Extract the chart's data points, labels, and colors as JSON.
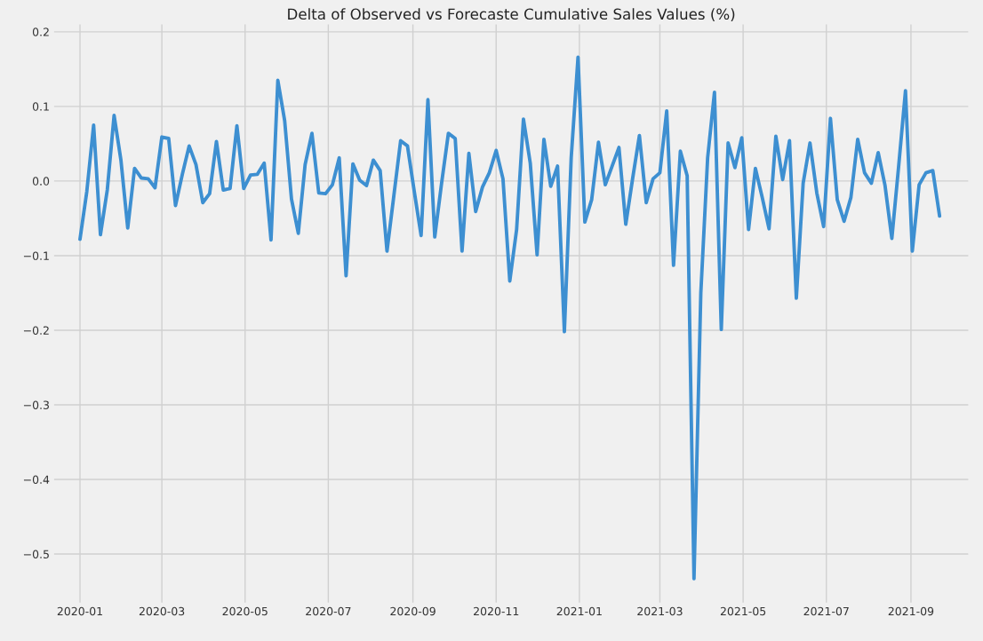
{
  "chart_data": {
    "type": "line",
    "title": "Delta of Observed vs Forecaste Cumulative Sales Values (%)",
    "x": [
      "2020-01-01",
      "2020-01-06",
      "2020-01-11",
      "2020-01-16",
      "2020-01-21",
      "2020-01-26",
      "2020-01-31",
      "2020-02-05",
      "2020-02-10",
      "2020-02-15",
      "2020-02-20",
      "2020-02-25",
      "2020-03-01",
      "2020-03-06",
      "2020-03-11",
      "2020-03-16",
      "2020-03-21",
      "2020-03-26",
      "2020-03-31",
      "2020-04-05",
      "2020-04-10",
      "2020-04-15",
      "2020-04-20",
      "2020-04-25",
      "2020-04-30",
      "2020-05-05",
      "2020-05-10",
      "2020-05-15",
      "2020-05-20",
      "2020-05-25",
      "2020-05-30",
      "2020-06-04",
      "2020-06-09",
      "2020-06-14",
      "2020-06-19",
      "2020-06-24",
      "2020-06-29",
      "2020-07-04",
      "2020-07-09",
      "2020-07-14",
      "2020-07-19",
      "2020-07-24",
      "2020-07-29",
      "2020-08-03",
      "2020-08-08",
      "2020-08-13",
      "2020-08-18",
      "2020-08-23",
      "2020-08-28",
      "2020-09-02",
      "2020-09-07",
      "2020-09-12",
      "2020-09-17",
      "2020-09-22",
      "2020-09-27",
      "2020-10-02",
      "2020-10-07",
      "2020-10-12",
      "2020-10-17",
      "2020-10-22",
      "2020-10-27",
      "2020-11-01",
      "2020-11-06",
      "2020-11-11",
      "2020-11-16",
      "2020-11-21",
      "2020-11-26",
      "2020-12-01",
      "2020-12-06",
      "2020-12-11",
      "2020-12-16",
      "2020-12-21",
      "2020-12-26",
      "2020-12-31",
      "2021-01-05",
      "2021-01-10",
      "2021-01-15",
      "2021-01-20",
      "2021-01-25",
      "2021-01-30",
      "2021-02-04",
      "2021-02-09",
      "2021-02-14",
      "2021-02-19",
      "2021-02-24",
      "2021-03-01",
      "2021-03-06",
      "2021-03-11",
      "2021-03-16",
      "2021-03-21",
      "2021-03-26",
      "2021-03-31",
      "2021-04-05",
      "2021-04-10",
      "2021-04-15",
      "2021-04-20",
      "2021-04-25",
      "2021-04-30",
      "2021-05-05",
      "2021-05-10",
      "2021-05-15",
      "2021-05-20",
      "2021-05-25",
      "2021-05-30",
      "2021-06-04",
      "2021-06-09",
      "2021-06-14",
      "2021-06-19",
      "2021-06-24",
      "2021-06-29",
      "2021-07-04",
      "2021-07-09",
      "2021-07-14",
      "2021-07-19",
      "2021-07-24",
      "2021-07-29",
      "2021-08-03",
      "2021-08-08",
      "2021-08-13",
      "2021-08-18",
      "2021-08-23",
      "2021-08-28",
      "2021-09-02",
      "2021-09-07",
      "2021-09-12",
      "2021-09-17",
      "2021-09-22"
    ],
    "series": [
      {
        "color": "#3d8fd1",
        "values": [
          -0.078,
          -0.014,
          0.075,
          -0.072,
          -0.012,
          0.088,
          0.028,
          -0.063,
          0.017,
          0.004,
          0.003,
          -0.009,
          0.059,
          0.057,
          -0.033,
          0.009,
          0.047,
          0.022,
          -0.029,
          -0.017,
          0.053,
          -0.012,
          -0.01,
          0.074,
          -0.01,
          0.008,
          0.009,
          0.024,
          -0.079,
          0.135,
          0.081,
          -0.024,
          -0.07,
          0.022,
          0.064,
          -0.016,
          -0.017,
          -0.005,
          0.031,
          -0.127,
          0.023,
          0.001,
          -0.006,
          0.028,
          0.014,
          -0.094,
          -0.02,
          0.054,
          0.047,
          -0.014,
          -0.073,
          0.109,
          -0.075,
          -0.003,
          0.064,
          0.057,
          -0.094,
          0.037,
          -0.041,
          -0.008,
          0.011,
          0.041,
          0.003,
          -0.134,
          -0.065,
          0.083,
          0.024,
          -0.099,
          0.056,
          -0.007,
          0.02,
          -0.202,
          0.031,
          0.166,
          -0.055,
          -0.025,
          0.052,
          -0.005,
          0.02,
          0.045,
          -0.058,
          0.003,
          0.061,
          -0.029,
          0.003,
          0.011,
          0.094,
          -0.113,
          0.04,
          0.007,
          -0.533,
          -0.15,
          0.031,
          0.119,
          -0.199,
          0.051,
          0.018,
          0.058,
          -0.065,
          0.017,
          -0.022,
          -0.064,
          0.06,
          0.002,
          0.054,
          -0.157,
          -0.003,
          0.051,
          -0.016,
          -0.061,
          0.084,
          -0.025,
          -0.054,
          -0.022,
          0.056,
          0.011,
          -0.003,
          0.038,
          -0.006,
          -0.077,
          0.02,
          0.121,
          -0.094,
          -0.005,
          0.011,
          0.014,
          -0.047
        ]
      }
    ],
    "xlim": [
      "2019-12-13",
      "2021-10-13"
    ],
    "xticks": [
      {
        "value": "2020-01-01",
        "label": "2020-01"
      },
      {
        "value": "2020-03-01",
        "label": "2020-03"
      },
      {
        "value": "2020-05-01",
        "label": "2020-05"
      },
      {
        "value": "2020-07-01",
        "label": "2020-07"
      },
      {
        "value": "2020-09-01",
        "label": "2020-09"
      },
      {
        "value": "2020-11-01",
        "label": "2020-11"
      },
      {
        "value": "2021-01-01",
        "label": "2021-01"
      },
      {
        "value": "2021-03-01",
        "label": "2021-03"
      },
      {
        "value": "2021-05-01",
        "label": "2021-05"
      },
      {
        "value": "2021-07-01",
        "label": "2021-07"
      },
      {
        "value": "2021-09-01",
        "label": "2021-09"
      }
    ],
    "ylim": [
      -0.565,
      0.21
    ],
    "yticks": [
      {
        "value": -0.5,
        "label": "−0.5"
      },
      {
        "value": -0.4,
        "label": "−0.4"
      },
      {
        "value": -0.3,
        "label": "−0.3"
      },
      {
        "value": -0.2,
        "label": "−0.2"
      },
      {
        "value": -0.1,
        "label": "−0.1"
      },
      {
        "value": 0,
        "label": "0.0"
      },
      {
        "value": 0.1,
        "label": "0.1"
      },
      {
        "value": 0.2,
        "label": "0.2"
      }
    ],
    "grid": true,
    "line_style": "solid"
  }
}
